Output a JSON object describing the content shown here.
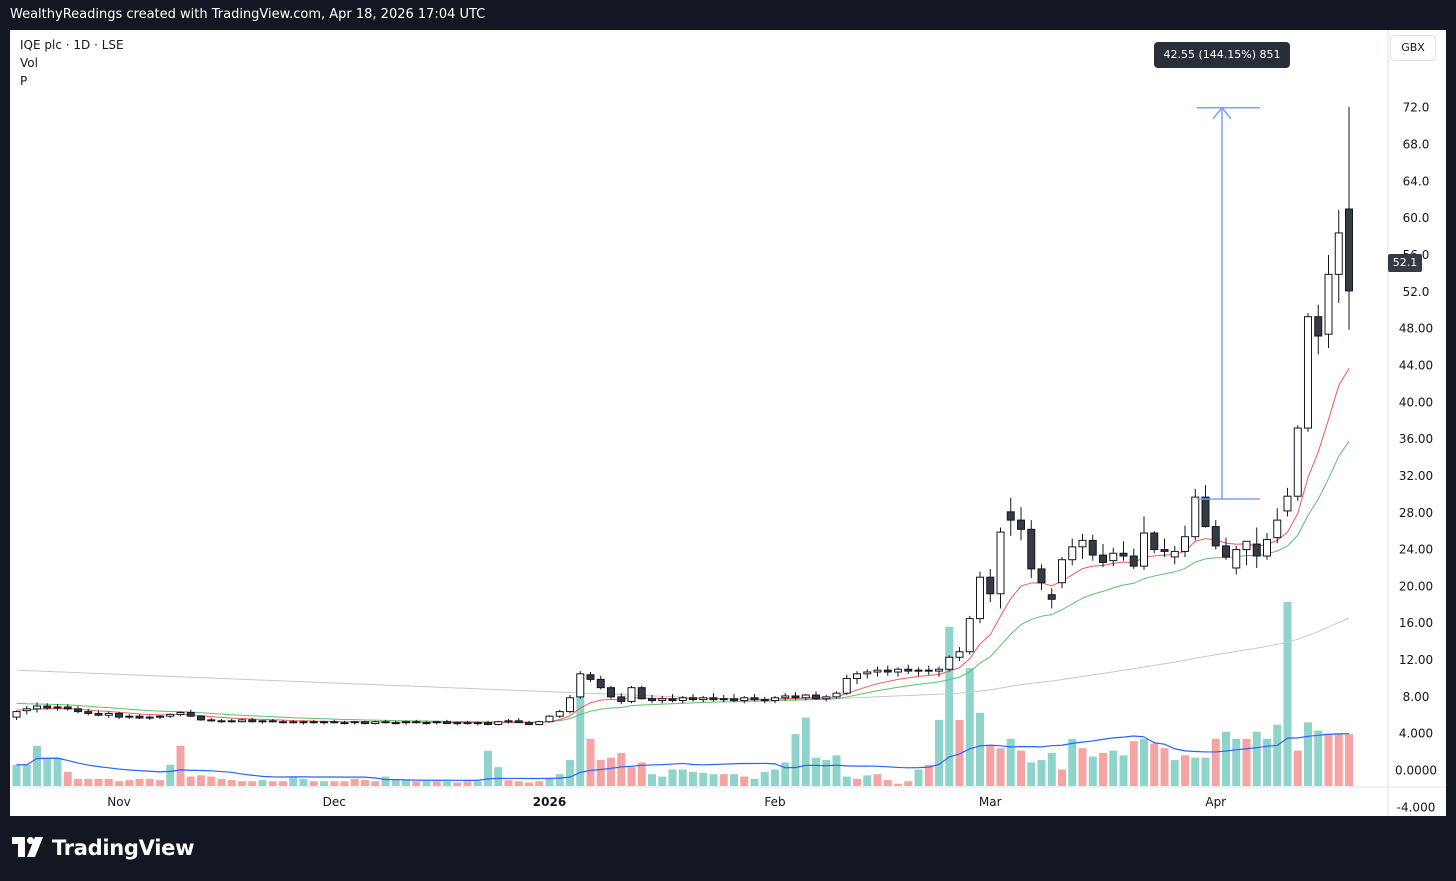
{
  "header": {
    "attribution": "WealthyReadings created with TradingView.com, Apr 18, 2026 17:04 UTC"
  },
  "legend": {
    "symbol": "IQE plc · 1D · LSE",
    "vol": "Vol",
    "p": "P"
  },
  "axis": {
    "currency": "GBX",
    "last_price_label": "52.1"
  },
  "measure": {
    "label": "42.55 (144.15%) 851"
  },
  "footer": {
    "brand": "TradingView"
  },
  "colors": {
    "up_body": "#ffffff",
    "down_body": "#363a45",
    "wick": "#131722",
    "vol_up": "#8fd4cb",
    "vol_down": "#f5a3a3",
    "ma_red": "#f05a5a",
    "ma_green": "#5fbf6a",
    "ma_gray": "#c8c8c8",
    "vol_ma": "#2962ff",
    "measure": "#7da2f5"
  },
  "chart_data": {
    "type": "candlestick",
    "symbol": "IQE plc",
    "interval": "1D",
    "exchange": "LSE",
    "currency": "GBX",
    "price_axis": {
      "ylim": [
        -4,
        74
      ],
      "ticks": [
        "72.0",
        "68.0",
        "64.0",
        "60.0",
        "56.0",
        "52.0",
        "48.00",
        "44.00",
        "40.00",
        "36.00",
        "32.00",
        "28.00",
        "24.00",
        "20.00",
        "16.00",
        "12.00",
        "8.00",
        "4.000",
        "0.0000",
        "-4.000"
      ],
      "tick_values": [
        72,
        68,
        64,
        60,
        56,
        52,
        48,
        44,
        40,
        36,
        32,
        28,
        24,
        20,
        16,
        12,
        8,
        4,
        0,
        -4
      ]
    },
    "time_axis": {
      "labels": [
        "Nov",
        "Dec",
        "2026",
        "Feb",
        "Mar",
        "Apr"
      ],
      "label_bar_index": [
        10,
        31,
        52,
        74,
        95,
        117
      ],
      "bold_label": "2026"
    },
    "last_price": 52.1,
    "measurement": {
      "from_bar": 116,
      "to_bar": 116,
      "from_price": 29.5,
      "to_price": 72.0,
      "change": 42.55,
      "change_pct": 144.15,
      "bars": 851
    },
    "candles": [
      [
        5.8,
        6.5,
        5.5,
        6.4
      ],
      [
        6.5,
        7.0,
        6.1,
        6.7
      ],
      [
        6.7,
        7.4,
        6.3,
        7.0
      ],
      [
        7.0,
        7.3,
        6.6,
        6.8
      ],
      [
        6.8,
        7.2,
        6.5,
        6.9
      ],
      [
        6.9,
        7.2,
        6.5,
        6.7
      ],
      [
        6.7,
        7.0,
        6.2,
        6.4
      ],
      [
        6.4,
        6.7,
        6.0,
        6.2
      ],
      [
        6.2,
        6.5,
        5.9,
        6.0
      ],
      [
        6.0,
        6.4,
        5.7,
        6.2
      ],
      [
        6.2,
        6.4,
        5.6,
        5.8
      ],
      [
        5.8,
        6.1,
        5.6,
        5.9
      ],
      [
        5.9,
        6.1,
        5.6,
        5.7
      ],
      [
        5.7,
        6.0,
        5.5,
        5.8
      ],
      [
        5.8,
        6.0,
        5.6,
        5.9
      ],
      [
        5.9,
        6.2,
        5.7,
        6.1
      ],
      [
        6.1,
        6.4,
        5.9,
        6.3
      ],
      [
        6.3,
        6.6,
        5.8,
        5.9
      ],
      [
        5.9,
        6.0,
        5.4,
        5.5
      ],
      [
        5.5,
        5.7,
        5.3,
        5.4
      ],
      [
        5.4,
        5.6,
        5.2,
        5.4
      ],
      [
        5.4,
        5.6,
        5.2,
        5.3
      ],
      [
        5.3,
        5.6,
        5.2,
        5.5
      ],
      [
        5.5,
        5.7,
        5.2,
        5.3
      ],
      [
        5.3,
        5.5,
        5.1,
        5.4
      ],
      [
        5.4,
        5.6,
        5.2,
        5.3
      ],
      [
        5.3,
        5.5,
        5.1,
        5.3
      ],
      [
        5.3,
        5.5,
        5.1,
        5.2
      ],
      [
        5.2,
        5.4,
        5.0,
        5.3
      ],
      [
        5.3,
        5.5,
        5.1,
        5.2
      ],
      [
        5.2,
        5.4,
        5.0,
        5.3
      ],
      [
        5.3,
        5.5,
        5.1,
        5.2
      ],
      [
        5.2,
        5.4,
        5.0,
        5.2
      ],
      [
        5.2,
        5.4,
        5.0,
        5.3
      ],
      [
        5.3,
        5.4,
        5.0,
        5.1
      ],
      [
        5.1,
        5.4,
        5.0,
        5.3
      ],
      [
        5.3,
        5.5,
        5.1,
        5.2
      ],
      [
        5.2,
        5.4,
        5.0,
        5.2
      ],
      [
        5.2,
        5.4,
        5.0,
        5.3
      ],
      [
        5.3,
        5.5,
        5.1,
        5.2
      ],
      [
        5.2,
        5.4,
        5.0,
        5.2
      ],
      [
        5.2,
        5.4,
        5.0,
        5.3
      ],
      [
        5.3,
        5.5,
        5.1,
        5.1
      ],
      [
        5.1,
        5.3,
        4.9,
        5.2
      ],
      [
        5.2,
        5.4,
        5.0,
        5.1
      ],
      [
        5.1,
        5.3,
        4.9,
        5.2
      ],
      [
        5.2,
        5.4,
        4.9,
        5.0
      ],
      [
        5.0,
        5.4,
        4.9,
        5.3
      ],
      [
        5.3,
        5.6,
        5.1,
        5.4
      ],
      [
        5.4,
        5.7,
        5.2,
        5.2
      ],
      [
        5.2,
        5.4,
        4.9,
        5.0
      ],
      [
        5.0,
        5.4,
        4.9,
        5.3
      ],
      [
        5.3,
        6.0,
        5.2,
        5.9
      ],
      [
        5.9,
        6.6,
        5.7,
        6.4
      ],
      [
        6.4,
        8.2,
        6.2,
        7.9
      ],
      [
        8.0,
        10.8,
        7.8,
        10.5
      ],
      [
        10.4,
        10.7,
        9.6,
        9.9
      ],
      [
        9.9,
        10.3,
        8.8,
        9.0
      ],
      [
        9.0,
        9.2,
        7.8,
        8.0
      ],
      [
        8.0,
        8.4,
        7.2,
        7.5
      ],
      [
        7.5,
        9.2,
        7.3,
        9.0
      ],
      [
        9.0,
        9.2,
        7.7,
        7.8
      ],
      [
        7.8,
        8.2,
        7.3,
        7.6
      ],
      [
        7.6,
        8.1,
        7.3,
        7.8
      ],
      [
        7.8,
        8.3,
        7.4,
        7.6
      ],
      [
        7.6,
        8.1,
        7.3,
        7.9
      ],
      [
        7.9,
        8.3,
        7.5,
        7.7
      ],
      [
        7.7,
        8.1,
        7.4,
        7.9
      ],
      [
        7.9,
        8.4,
        7.5,
        7.7
      ],
      [
        7.7,
        8.2,
        7.4,
        7.8
      ],
      [
        7.8,
        8.3,
        7.4,
        7.6
      ],
      [
        7.6,
        8.1,
        7.3,
        7.9
      ],
      [
        7.9,
        8.3,
        7.5,
        7.7
      ],
      [
        7.7,
        8.0,
        7.3,
        7.6
      ],
      [
        7.6,
        8.1,
        7.3,
        7.9
      ],
      [
        7.9,
        8.4,
        7.6,
        8.1
      ],
      [
        8.1,
        8.5,
        7.7,
        7.9
      ],
      [
        7.9,
        8.3,
        7.6,
        8.2
      ],
      [
        8.2,
        8.6,
        7.7,
        7.8
      ],
      [
        7.8,
        8.2,
        7.5,
        8.0
      ],
      [
        8.0,
        8.6,
        7.8,
        8.4
      ],
      [
        8.4,
        10.4,
        8.2,
        10.0
      ],
      [
        10.0,
        10.8,
        9.4,
        10.5
      ],
      [
        10.5,
        11.0,
        10.0,
        10.7
      ],
      [
        10.7,
        11.3,
        10.2,
        10.9
      ],
      [
        10.9,
        11.4,
        10.3,
        10.7
      ],
      [
        10.7,
        11.2,
        10.2,
        11.0
      ],
      [
        11.0,
        11.5,
        10.5,
        10.8
      ],
      [
        10.8,
        11.2,
        10.3,
        10.9
      ],
      [
        10.9,
        11.4,
        10.4,
        10.8
      ],
      [
        10.8,
        11.3,
        10.2,
        11.0
      ],
      [
        11.0,
        12.5,
        10.8,
        12.3
      ],
      [
        12.3,
        13.4,
        11.9,
        12.9
      ],
      [
        12.9,
        16.8,
        12.6,
        16.5
      ],
      [
        16.5,
        21.6,
        16.0,
        21.0
      ],
      [
        21.0,
        21.9,
        18.3,
        19.2
      ],
      [
        19.2,
        26.4,
        17.6,
        25.9
      ],
      [
        28.1,
        29.6,
        25.5,
        27.2
      ],
      [
        27.2,
        28.6,
        25.0,
        26.2
      ],
      [
        26.2,
        27.2,
        20.9,
        21.9
      ],
      [
        21.9,
        22.4,
        19.6,
        20.4
      ],
      [
        19.1,
        19.8,
        17.6,
        18.6
      ],
      [
        20.4,
        23.2,
        19.8,
        22.9
      ],
      [
        22.9,
        25.2,
        22.3,
        24.3
      ],
      [
        24.3,
        25.7,
        23.0,
        25.0
      ],
      [
        25.0,
        25.6,
        22.8,
        23.4
      ],
      [
        23.4,
        24.6,
        22.1,
        22.6
      ],
      [
        22.8,
        24.2,
        22.2,
        23.6
      ],
      [
        23.6,
        24.9,
        22.8,
        23.3
      ],
      [
        23.3,
        24.1,
        21.9,
        22.2
      ],
      [
        22.2,
        27.6,
        21.8,
        25.8
      ],
      [
        25.8,
        26.0,
        23.6,
        24.0
      ],
      [
        24.0,
        25.2,
        23.2,
        23.8
      ],
      [
        23.2,
        24.4,
        22.4,
        23.8
      ],
      [
        23.8,
        26.6,
        23.2,
        25.4
      ],
      [
        25.4,
        30.6,
        25.0,
        29.7
      ],
      [
        29.7,
        31.0,
        26.4,
        26.5
      ],
      [
        26.5,
        27.2,
        24.0,
        24.4
      ],
      [
        24.4,
        25.3,
        22.9,
        23.2
      ],
      [
        22.0,
        24.4,
        21.3,
        24.0
      ],
      [
        24.0,
        24.8,
        22.3,
        24.9
      ],
      [
        24.6,
        26.4,
        22.0,
        23.3
      ],
      [
        23.3,
        25.8,
        22.9,
        25.1
      ],
      [
        25.3,
        28.5,
        24.7,
        27.2
      ],
      [
        28.2,
        30.7,
        27.6,
        29.8
      ],
      [
        29.8,
        37.5,
        29.3,
        37.2
      ],
      [
        37.2,
        49.7,
        36.8,
        49.3
      ],
      [
        49.3,
        50.6,
        45.2,
        47.2
      ],
      [
        47.4,
        56.0,
        45.9,
        53.9
      ],
      [
        53.9,
        60.9,
        50.8,
        58.4
      ],
      [
        61.0,
        72.1,
        47.9,
        52.1
      ]
    ],
    "volume_axis_note": "volume bars plotted at bottom, relative scale",
    "volume": [
      [
        0.18,
        1
      ],
      [
        0.18,
        1
      ],
      [
        0.34,
        1
      ],
      [
        0.24,
        1
      ],
      [
        0.24,
        1
      ],
      [
        0.12,
        0
      ],
      [
        0.06,
        0
      ],
      [
        0.06,
        0
      ],
      [
        0.06,
        0
      ],
      [
        0.06,
        0
      ],
      [
        0.04,
        0
      ],
      [
        0.05,
        0
      ],
      [
        0.06,
        0
      ],
      [
        0.06,
        0
      ],
      [
        0.05,
        0
      ],
      [
        0.18,
        1
      ],
      [
        0.34,
        0
      ],
      [
        0.08,
        0
      ],
      [
        0.09,
        0
      ],
      [
        0.08,
        0
      ],
      [
        0.06,
        0
      ],
      [
        0.05,
        0
      ],
      [
        0.04,
        0
      ],
      [
        0.04,
        0
      ],
      [
        0.05,
        1
      ],
      [
        0.04,
        0
      ],
      [
        0.04,
        0
      ],
      [
        0.08,
        1
      ],
      [
        0.06,
        1
      ],
      [
        0.04,
        0
      ],
      [
        0.04,
        1
      ],
      [
        0.04,
        0
      ],
      [
        0.04,
        0
      ],
      [
        0.06,
        0
      ],
      [
        0.05,
        0
      ],
      [
        0.04,
        0
      ],
      [
        0.08,
        1
      ],
      [
        0.06,
        1
      ],
      [
        0.05,
        1
      ],
      [
        0.04,
        0
      ],
      [
        0.04,
        1
      ],
      [
        0.04,
        0
      ],
      [
        0.04,
        1
      ],
      [
        0.03,
        0
      ],
      [
        0.04,
        0
      ],
      [
        0.04,
        1
      ],
      [
        0.3,
        1
      ],
      [
        0.16,
        1
      ],
      [
        0.05,
        0
      ],
      [
        0.04,
        0
      ],
      [
        0.03,
        0
      ],
      [
        0.04,
        0
      ],
      [
        0.06,
        1
      ],
      [
        0.1,
        1
      ],
      [
        0.22,
        1
      ],
      [
        0.86,
        1
      ],
      [
        0.4,
        0
      ],
      [
        0.22,
        0
      ],
      [
        0.24,
        0
      ],
      [
        0.28,
        0
      ],
      [
        0.16,
        0
      ],
      [
        0.2,
        0
      ],
      [
        0.1,
        1
      ],
      [
        0.08,
        1
      ],
      [
        0.14,
        1
      ],
      [
        0.14,
        1
      ],
      [
        0.12,
        1
      ],
      [
        0.11,
        1
      ],
      [
        0.1,
        1
      ],
      [
        0.1,
        0
      ],
      [
        0.1,
        1
      ],
      [
        0.08,
        0
      ],
      [
        0.06,
        1
      ],
      [
        0.12,
        1
      ],
      [
        0.14,
        1
      ],
      [
        0.2,
        1
      ],
      [
        0.44,
        1
      ],
      [
        0.58,
        1
      ],
      [
        0.24,
        1
      ],
      [
        0.22,
        1
      ],
      [
        0.26,
        1
      ],
      [
        0.08,
        1
      ],
      [
        0.06,
        0
      ],
      [
        0.09,
        1
      ],
      [
        0.1,
        0
      ],
      [
        0.05,
        0
      ],
      [
        0.02,
        0
      ],
      [
        0.04,
        0
      ],
      [
        0.14,
        1
      ],
      [
        0.18,
        0
      ],
      [
        0.56,
        1
      ],
      [
        1.35,
        1
      ],
      [
        0.56,
        0
      ],
      [
        1.0,
        1
      ],
      [
        0.62,
        1
      ],
      [
        0.34,
        0
      ],
      [
        0.32,
        0
      ],
      [
        0.4,
        1
      ],
      [
        0.3,
        0
      ],
      [
        0.2,
        1
      ],
      [
        0.22,
        1
      ],
      [
        0.28,
        1
      ],
      [
        0.14,
        0
      ],
      [
        0.4,
        1
      ],
      [
        0.32,
        0
      ],
      [
        0.25,
        1
      ],
      [
        0.28,
        0
      ],
      [
        0.3,
        1
      ],
      [
        0.26,
        1
      ],
      [
        0.38,
        0
      ],
      [
        0.4,
        1
      ],
      [
        0.36,
        0
      ],
      [
        0.32,
        0
      ],
      [
        0.22,
        1
      ],
      [
        0.26,
        0
      ],
      [
        0.24,
        1
      ],
      [
        0.24,
        1
      ],
      [
        0.4,
        0
      ],
      [
        0.46,
        1
      ],
      [
        0.4,
        1
      ],
      [
        0.4,
        0
      ],
      [
        0.46,
        1
      ],
      [
        0.4,
        1
      ],
      [
        0.52,
        1
      ],
      [
        1.56,
        1
      ],
      [
        0.3,
        0
      ],
      [
        0.54,
        1
      ],
      [
        0.47,
        1
      ],
      [
        0.44,
        0
      ],
      [
        0.44,
        0
      ],
      [
        0.44,
        0
      ]
    ]
  }
}
